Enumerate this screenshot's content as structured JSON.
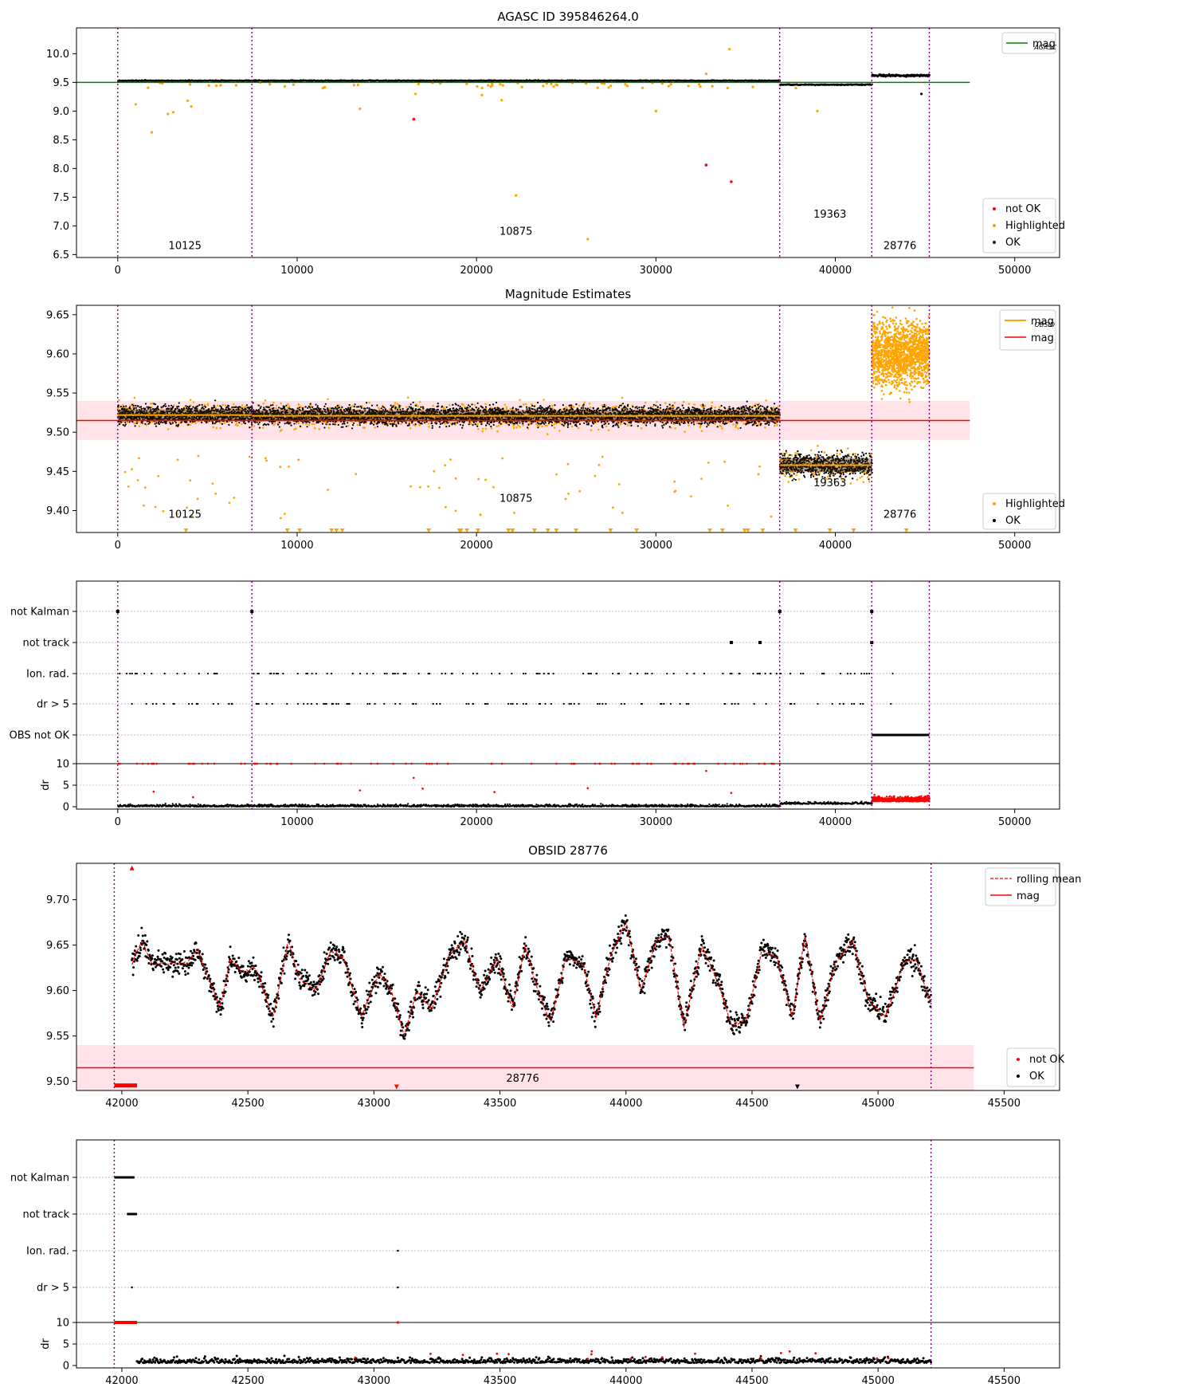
{
  "chart_data": [
    {
      "id": "agasc",
      "type": "scatter",
      "title": "AGASC ID 395846264.0",
      "xlim": [
        -2300,
        52500
      ],
      "ylim": [
        6.45,
        10.45
      ],
      "yticks": [
        6.5,
        7.0,
        7.5,
        8.0,
        8.5,
        9.0,
        9.5,
        10.0
      ],
      "xticks": [
        0,
        10000,
        20000,
        30000,
        40000,
        50000
      ],
      "obs_boundaries": [
        0,
        7480,
        36900,
        42030,
        45240
      ],
      "obs_labels": [
        {
          "text": "10125",
          "x": 3750,
          "y": 6.65
        },
        {
          "text": "10875",
          "x": 22200,
          "y": 6.9
        },
        {
          "text": "19363",
          "x": 39700,
          "y": 7.2
        },
        {
          "text": "28776",
          "x": 43600,
          "y": 6.65
        }
      ],
      "reference_line": {
        "name": "mag",
        "subscript": "AGASC",
        "value": 9.5,
        "x_range": [
          -2300,
          47500
        ],
        "color": "#008000"
      },
      "bands": [
        {
          "x_range": [
            0,
            36900
          ],
          "center": 9.53,
          "spread": 0.02
        },
        {
          "x_range": [
            36900,
            42030
          ],
          "center": 9.46,
          "spread": 0.02
        },
        {
          "x_range": [
            42030,
            45240
          ],
          "center": 9.62,
          "spread": 0.04
        }
      ],
      "highlighted_points": [
        [
          1000,
          9.12
        ],
        [
          1900,
          8.63
        ],
        [
          2800,
          8.95
        ],
        [
          3100,
          8.98
        ],
        [
          3900,
          9.18
        ],
        [
          4100,
          9.08
        ],
        [
          6600,
          9.45
        ],
        [
          13500,
          9.04
        ],
        [
          16600,
          9.3
        ],
        [
          21400,
          9.19
        ],
        [
          22200,
          7.53
        ],
        [
          26200,
          6.77
        ],
        [
          30000,
          9.0
        ],
        [
          32800,
          9.65
        ],
        [
          34100,
          10.08
        ],
        [
          37800,
          9.4
        ],
        [
          39000,
          9.0
        ],
        [
          20300,
          9.28
        ]
      ],
      "not_ok_points": [
        [
          16500,
          8.86
        ],
        [
          32800,
          8.06
        ],
        [
          34200,
          7.77
        ]
      ],
      "ok_outliers": [
        [
          44800,
          9.3
        ]
      ],
      "legend_line": [
        "mag"
      ],
      "legend_line_sub": [
        "AGASC"
      ],
      "legend_points": [
        "not OK",
        "Highlighted",
        "OK"
      ],
      "colors": {
        "not_ok": "#ff0000",
        "highlighted": "#ffa500",
        "ok": "#000000",
        "boundary": "#800080"
      }
    },
    {
      "id": "estimates",
      "type": "scatter",
      "title": "Magnitude Estimates",
      "xlim": [
        -2300,
        52500
      ],
      "ylim": [
        9.372,
        9.662
      ],
      "yticks": [
        9.4,
        9.45,
        9.5,
        9.55,
        9.6,
        9.65
      ],
      "xticks": [
        0,
        10000,
        20000,
        30000,
        40000,
        50000
      ],
      "obs_boundaries": [
        0,
        7480,
        36900,
        42030,
        45240
      ],
      "obs_labels": [
        {
          "text": "10125",
          "x": 3750,
          "y": 9.395
        },
        {
          "text": "10875",
          "x": 22200,
          "y": 9.415
        },
        {
          "text": "19363",
          "x": 39700,
          "y": 9.435
        },
        {
          "text": "28776",
          "x": 43600,
          "y": 9.395
        }
      ],
      "mag_line": {
        "value": 9.515,
        "band": [
          9.49,
          9.54
        ],
        "x_range": [
          -2300,
          47500
        ]
      },
      "obsid_mags": [
        {
          "x_range": [
            0,
            7480
          ],
          "value": 9.522,
          "spread": 0.012
        },
        {
          "x_range": [
            7480,
            36900
          ],
          "value": 9.521,
          "spread": 0.012
        },
        {
          "x_range": [
            36900,
            42030
          ],
          "value": 9.458,
          "spread": 0.015
        },
        {
          "x_range": [
            42030,
            45240
          ],
          "value": 9.6,
          "spread": 0.03
        }
      ],
      "legend_line": [
        "mag",
        "mag"
      ],
      "legend_line_sub": [
        "OBSID",
        ""
      ],
      "legend_points": [
        "Highlighted",
        "OK"
      ],
      "colors": {
        "mag": "#ff0000",
        "obsid_mag": "#ffa500",
        "band": "#ffc0cb"
      }
    },
    {
      "id": "flags",
      "type": "scatter",
      "xlim": [
        -2300,
        52500
      ],
      "xticks": [
        0,
        10000,
        20000,
        30000,
        40000,
        50000
      ],
      "flag_labels": [
        "not Kalman",
        "not track",
        "Ion. rad.",
        "dr > 5",
        "OBS not OK"
      ],
      "dr_label": "dr",
      "dr_ticks": [
        "0",
        "5",
        "10"
      ],
      "obs_boundaries": [
        0,
        7480,
        36900,
        42030,
        45240
      ]
    },
    {
      "id": "obsid",
      "type": "line",
      "title": "OBSID 28776",
      "xlim": [
        41820,
        45720
      ],
      "ylim": [
        9.49,
        9.74
      ],
      "yticks": [
        9.5,
        9.55,
        9.6,
        9.65,
        9.7
      ],
      "xticks": [
        42000,
        42500,
        43000,
        43500,
        44000,
        44500,
        45000,
        45500
      ],
      "obs_boundaries": [
        41970,
        45210
      ],
      "obs_label": {
        "text": "28776",
        "x": 43590,
        "y": 9.503
      },
      "mag_line": {
        "value": 9.515,
        "band": [
          9.49,
          9.54
        ],
        "x_range": [
          41820,
          45380
        ]
      },
      "rolling_mean_knots": [
        [
          42040,
          9.63
        ],
        [
          42080,
          9.655
        ],
        [
          42120,
          9.63
        ],
        [
          42200,
          9.63
        ],
        [
          42260,
          9.63
        ],
        [
          42300,
          9.645
        ],
        [
          42350,
          9.61
        ],
        [
          42390,
          9.58
        ],
        [
          42430,
          9.635
        ],
        [
          42480,
          9.62
        ],
        [
          42530,
          9.625
        ],
        [
          42600,
          9.57
        ],
        [
          42660,
          9.655
        ],
        [
          42700,
          9.615
        ],
        [
          42770,
          9.6
        ],
        [
          42830,
          9.645
        ],
        [
          42880,
          9.635
        ],
        [
          42950,
          9.57
        ],
        [
          43020,
          9.62
        ],
        [
          43070,
          9.6
        ],
        [
          43120,
          9.55
        ],
        [
          43170,
          9.6
        ],
        [
          43230,
          9.58
        ],
        [
          43300,
          9.64
        ],
        [
          43360,
          9.655
        ],
        [
          43420,
          9.6
        ],
        [
          43490,
          9.635
        ],
        [
          43550,
          9.58
        ],
        [
          43600,
          9.65
        ],
        [
          43650,
          9.6
        ],
        [
          43700,
          9.565
        ],
        [
          43760,
          9.635
        ],
        [
          43830,
          9.63
        ],
        [
          43880,
          9.57
        ],
        [
          43940,
          9.64
        ],
        [
          44000,
          9.675
        ],
        [
          44060,
          9.6
        ],
        [
          44120,
          9.655
        ],
        [
          44170,
          9.66
        ],
        [
          44230,
          9.56
        ],
        [
          44300,
          9.65
        ],
        [
          44370,
          9.605
        ],
        [
          44420,
          9.56
        ],
        [
          44480,
          9.57
        ],
        [
          44540,
          9.645
        ],
        [
          44600,
          9.635
        ],
        [
          44660,
          9.57
        ],
        [
          44710,
          9.66
        ],
        [
          44770,
          9.565
        ],
        [
          44830,
          9.63
        ],
        [
          44900,
          9.655
        ],
        [
          44960,
          9.59
        ],
        [
          45030,
          9.57
        ],
        [
          45100,
          9.63
        ],
        [
          45150,
          9.635
        ],
        [
          45210,
          9.585
        ]
      ],
      "not_ok_markers": [
        [
          42040,
          9.735,
          "up"
        ],
        [
          43090,
          9.494,
          "down"
        ],
        [
          44680,
          9.494,
          "down"
        ]
      ],
      "not_ok_segment": {
        "x_range": [
          41970,
          42060
        ],
        "value": 9.496
      },
      "legend_line": [
        "rolling mean",
        "mag"
      ],
      "legend_points": [
        "not OK",
        "OK"
      ],
      "colors": {
        "rolling": "#ff0000",
        "mag": "#ff0000",
        "band": "#ffc0cb"
      }
    },
    {
      "id": "obsid_flags",
      "type": "scatter",
      "xlim": [
        41820,
        45720
      ],
      "xticks": [
        42000,
        42500,
        43000,
        43500,
        44000,
        44500,
        45000,
        45500
      ],
      "flag_labels": [
        "not Kalman",
        "not track",
        "Ion. rad.",
        "dr > 5"
      ],
      "dr_label": "dr",
      "dr_ticks": [
        "0",
        "5",
        "10"
      ],
      "obs_boundaries": [
        41970,
        45210
      ]
    }
  ]
}
